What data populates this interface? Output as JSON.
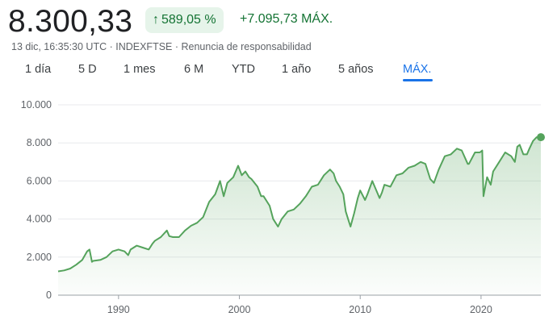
{
  "header": {
    "price": "8.300,33",
    "change_percent": "589,05 %",
    "change_arrow": "↑",
    "change_abs": "+7.095,73 MÁX.",
    "meta": "13 dic, 16:35:30 UTC · INDEXFTSE · Renuncia de responsabilidad"
  },
  "tabs": [
    {
      "label": "1 día"
    },
    {
      "label": "5 D"
    },
    {
      "label": "1 mes"
    },
    {
      "label": "6 M"
    },
    {
      "label": "YTD"
    },
    {
      "label": "1 año"
    },
    {
      "label": "5 años"
    },
    {
      "label": "MÁX."
    }
  ],
  "active_tab": 7,
  "colors": {
    "line": "#55a35c",
    "fill_top": "#55a35c",
    "grid": "#e8eaed",
    "active_tab": "#1a73e8",
    "positive": "#137333"
  },
  "chart_data": {
    "type": "area",
    "xlabel": "",
    "ylabel": "",
    "ylim": [
      0,
      10000
    ],
    "xlim": [
      1985.0,
      2024.95
    ],
    "ytick_labels": [
      "0",
      "2.000",
      "4.000",
      "6.000",
      "8.000",
      "10.000"
    ],
    "yticks": [
      0,
      2000,
      4000,
      6000,
      8000,
      10000
    ],
    "xtick_labels": [
      "1990",
      "2000",
      "2010",
      "2020"
    ],
    "xticks": [
      1990,
      2000,
      2010,
      2020
    ],
    "grid": true,
    "series": [
      {
        "x": [
          1985.0,
          1985.5,
          1986.0,
          1986.5,
          1987.0,
          1987.4,
          1987.6,
          1987.8,
          1987.9,
          1988.5,
          1989.0,
          1989.5,
          1990.0,
          1990.5,
          1990.8,
          1991.0,
          1991.5,
          1992.0,
          1992.5,
          1992.8,
          1993.0,
          1993.5,
          1994.0,
          1994.2,
          1994.5,
          1995.0,
          1995.5,
          1996.0,
          1996.5,
          1997.0,
          1997.5,
          1998.0,
          1998.4,
          1998.7,
          1999.0,
          1999.5,
          1999.9,
          2000.2,
          2000.5,
          2000.8,
          2001.0,
          2001.5,
          2001.8,
          2002.0,
          2002.5,
          2002.8,
          2003.0,
          2003.2,
          2003.5,
          2004.0,
          2004.5,
          2005.0,
          2005.5,
          2006.0,
          2006.5,
          2007.0,
          2007.5,
          2007.8,
          2008.0,
          2008.3,
          2008.6,
          2008.8,
          2009.0,
          2009.2,
          2009.5,
          2009.8,
          2010.0,
          2010.4,
          2010.6,
          2011.0,
          2011.6,
          2011.8,
          2012.0,
          2012.5,
          2013.0,
          2013.5,
          2014.0,
          2014.5,
          2015.0,
          2015.4,
          2015.8,
          2016.1,
          2016.5,
          2017.0,
          2017.5,
          2018.0,
          2018.4,
          2018.9,
          2019.0,
          2019.5,
          2019.9,
          2020.1,
          2020.2,
          2020.5,
          2020.8,
          2021.0,
          2021.5,
          2022.0,
          2022.5,
          2022.8,
          2023.0,
          2023.2,
          2023.5,
          2023.8,
          2024.0,
          2024.3,
          2024.6,
          2024.95
        ],
        "y": [
          1250,
          1300,
          1400,
          1600,
          1850,
          2300,
          2400,
          1750,
          1800,
          1850,
          2000,
          2300,
          2400,
          2300,
          2100,
          2400,
          2600,
          2500,
          2400,
          2700,
          2850,
          3050,
          3400,
          3100,
          3050,
          3050,
          3400,
          3650,
          3800,
          4100,
          4900,
          5300,
          6000,
          5200,
          5900,
          6200,
          6800,
          6300,
          6500,
          6200,
          6100,
          5700,
          5200,
          5200,
          4700,
          4000,
          3800,
          3600,
          4000,
          4400,
          4500,
          4800,
          5200,
          5700,
          5800,
          6300,
          6600,
          6400,
          6000,
          5700,
          5300,
          4400,
          4000,
          3600,
          4300,
          5100,
          5500,
          5000,
          5300,
          6000,
          5100,
          5400,
          5800,
          5700,
          6300,
          6400,
          6700,
          6800,
          7000,
          6900,
          6100,
          5900,
          6600,
          7300,
          7400,
          7700,
          7600,
          6900,
          6900,
          7500,
          7500,
          7600,
          5200,
          6200,
          5800,
          6500,
          7000,
          7500,
          7300,
          7000,
          7800,
          7900,
          7400,
          7400,
          7700,
          8100,
          8300,
          8300
        ]
      }
    ]
  }
}
